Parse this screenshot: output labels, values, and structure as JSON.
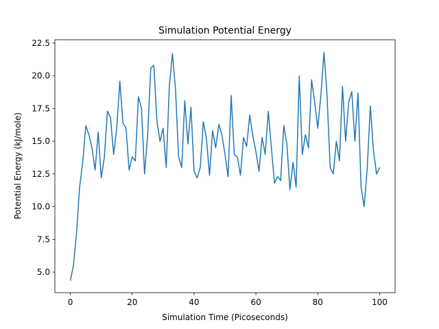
{
  "chart_data": {
    "type": "line",
    "title": "Simulation Potential Energy",
    "x_label": "Simulation Time (Picoseconds)",
    "y_label": "Potential Energy (kJ/mole)",
    "x": [
      0,
      1,
      2,
      3,
      4,
      5,
      6,
      7,
      8,
      9,
      10,
      11,
      12,
      13,
      14,
      15,
      16,
      17,
      18,
      19,
      20,
      21,
      22,
      23,
      24,
      25,
      26,
      27,
      28,
      29,
      30,
      31,
      32,
      33,
      34,
      35,
      36,
      37,
      38,
      39,
      40,
      41,
      42,
      43,
      44,
      45,
      46,
      47,
      48,
      49,
      50,
      51,
      52,
      53,
      54,
      55,
      56,
      57,
      58,
      59,
      60,
      61,
      62,
      63,
      64,
      65,
      66,
      67,
      68,
      69,
      70,
      71,
      72,
      73,
      74,
      75,
      76,
      77,
      78,
      79,
      80,
      81,
      82,
      83,
      84,
      85,
      86,
      87,
      88,
      89,
      90,
      91,
      92,
      93,
      94,
      95,
      96,
      97,
      98,
      99,
      100
    ],
    "series": [
      {
        "name": "Potential Energy",
        "color": "#1f77b4",
        "values": [
          4.35,
          5.5,
          8.0,
          11.5,
          13.4,
          16.2,
          15.5,
          14.5,
          12.8,
          15.7,
          12.2,
          13.8,
          17.3,
          16.8,
          14.0,
          16.0,
          19.6,
          16.4,
          16.0,
          12.8,
          13.8,
          13.5,
          18.4,
          17.5,
          12.5,
          15.5,
          20.6,
          20.8,
          16.5,
          15.0,
          16.0,
          13.0,
          19.2,
          21.7,
          19.0,
          13.8,
          13.0,
          18.1,
          14.8,
          17.6,
          12.7,
          12.2,
          13.0,
          16.5,
          15.2,
          12.4,
          15.8,
          14.5,
          16.3,
          15.5,
          14.0,
          12.3,
          18.5,
          14.0,
          13.8,
          12.4,
          15.3,
          14.6,
          17.0,
          15.4,
          14.2,
          12.7,
          15.3,
          14.0,
          17.3,
          14.5,
          11.8,
          12.3,
          12.0,
          16.2,
          14.8,
          11.3,
          13.4,
          11.5,
          20.0,
          14.0,
          15.5,
          14.5,
          19.7,
          18.0,
          16.0,
          18.5,
          21.8,
          18.5,
          13.0,
          12.5,
          15.0,
          13.5,
          19.2,
          15.0,
          18.0,
          18.8,
          15.0,
          18.7,
          11.5,
          10.0,
          13.0,
          17.7,
          14.3,
          12.5,
          13.0
        ]
      }
    ],
    "xlim": [
      -5,
      105
    ],
    "ylim": [
      3.43,
      22.76
    ],
    "xticks": [
      0,
      20,
      40,
      60,
      80,
      100
    ],
    "yticks": [
      {
        "value": 5,
        "label": "5.0"
      },
      {
        "value": 7.5,
        "label": "7.5"
      },
      {
        "value": 10,
        "label": "10.0"
      },
      {
        "value": 12.5,
        "label": "12.5"
      },
      {
        "value": 15,
        "label": "15.0"
      },
      {
        "value": 17.5,
        "label": "17.5"
      },
      {
        "value": 20,
        "label": "20.0"
      },
      {
        "value": 22.5,
        "label": "22.5"
      }
    ],
    "grid": false
  }
}
